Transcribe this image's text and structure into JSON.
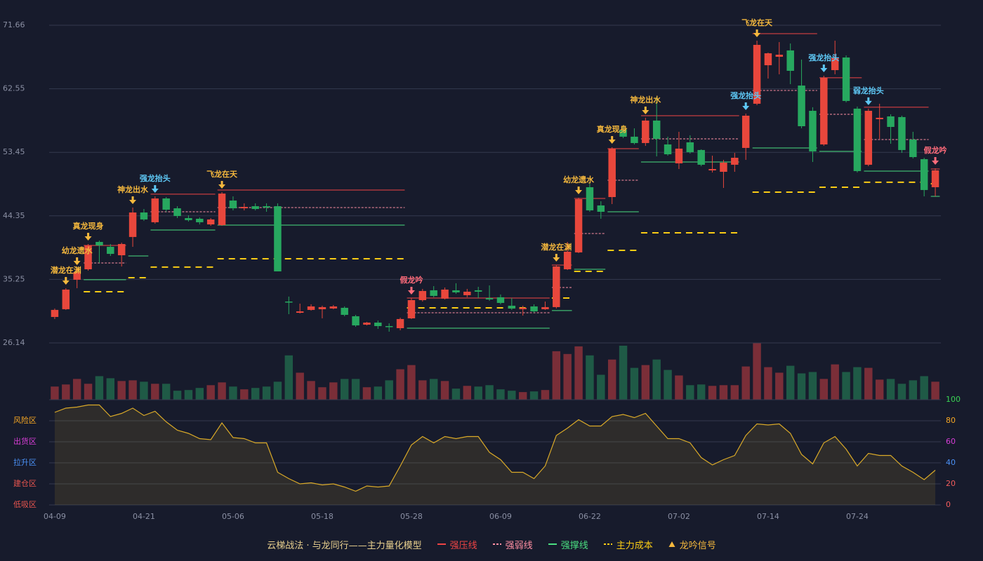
{
  "chart_data": [
    {
      "type": "candlestick",
      "categories": [
        "04-09",
        null,
        null,
        null,
        null,
        null,
        null,
        null,
        "04-21",
        null,
        null,
        null,
        null,
        null,
        null,
        null,
        "05-06",
        null,
        null,
        null,
        null,
        null,
        null,
        null,
        "05-18",
        null,
        null,
        null,
        null,
        null,
        null,
        null,
        "05-28",
        null,
        null,
        null,
        null,
        null,
        null,
        null,
        "06-09",
        null,
        null,
        null,
        null,
        null,
        null,
        null,
        "06-22",
        null,
        null,
        null,
        null,
        null,
        null,
        null,
        "07-02",
        null,
        null,
        null,
        null,
        null,
        null,
        null,
        "07-14",
        null,
        null,
        null,
        null,
        null,
        null,
        null,
        "07-24",
        null,
        null,
        null,
        null,
        null,
        null,
        null
      ],
      "open": [
        29.86,
        30.97,
        35.19,
        36.69,
        40.61,
        39.91,
        38.7,
        41.32,
        44.83,
        43.43,
        46.84,
        45.43,
        44.03,
        43.93,
        43.12,
        43.02,
        46.54,
        45.43,
        45.73,
        45.73,
        45.73,
        32.07,
        30.46,
        30.87,
        30.97,
        31.07,
        31.17,
        29.96,
        28.75,
        29.05,
        28.55,
        28.25,
        29.66,
        32.27,
        33.68,
        32.48,
        33.68,
        32.98,
        33.68,
        32.57,
        32.68,
        31.47,
        30.97,
        31.37,
        30.97,
        31.27,
        36.69,
        39.11,
        48.45,
        45.84,
        47.04,
        56.69,
        55.69,
        54.78,
        58.0,
        54.58,
        51.87,
        54.88,
        53.78,
        50.86,
        50.66,
        51.67,
        54.08,
        60.41,
        65.93,
        67.14,
        68.05,
        63.02,
        59.4,
        54.58,
        65.23,
        67.04,
        59.71,
        51.67,
        58.2,
        58.6,
        58.5,
        55.28,
        52.47,
        48.45
      ],
      "high": [
        31.07,
        33.98,
        36.79,
        40.31,
        40.81,
        40.31,
        40.51,
        45.54,
        45.33,
        47.14,
        47.04,
        45.73,
        44.43,
        44.13,
        44.03,
        47.75,
        47.14,
        46.14,
        46.14,
        46.14,
        46.14,
        32.78,
        31.77,
        31.67,
        31.47,
        31.57,
        31.37,
        30.16,
        29.15,
        29.35,
        28.95,
        29.76,
        32.57,
        33.88,
        34.28,
        34.08,
        34.69,
        33.88,
        34.18,
        34.38,
        33.08,
        32.57,
        31.47,
        31.67,
        32.07,
        37.3,
        40.61,
        46.94,
        48.95,
        46.44,
        54.18,
        57.19,
        56.89,
        58.4,
        61.41,
        55.69,
        56.39,
        55.89,
        53.88,
        52.97,
        52.37,
        53.37,
        59.0,
        69.45,
        67.74,
        69.25,
        69.05,
        66.74,
        59.91,
        64.43,
        69.45,
        67.34,
        60.01,
        59.71,
        60.41,
        58.9,
        58.7,
        56.39,
        52.67,
        51.16
      ],
      "low": [
        29.56,
        30.87,
        33.98,
        36.49,
        37.6,
        38.6,
        37.09,
        39.91,
        43.63,
        43.22,
        44.93,
        44.03,
        43.53,
        43.12,
        42.92,
        42.92,
        45.13,
        45.13,
        45.13,
        44.93,
        36.39,
        30.26,
        30.36,
        30.77,
        29.66,
        30.97,
        29.96,
        28.45,
        28.65,
        28.15,
        27.75,
        27.95,
        29.56,
        32.07,
        32.68,
        32.37,
        33.18,
        32.68,
        32.57,
        32.17,
        31.67,
        30.87,
        30.06,
        30.46,
        30.87,
        31.07,
        36.59,
        39.01,
        44.93,
        43.93,
        46.04,
        55.48,
        54.58,
        54.38,
        52.87,
        52.97,
        51.06,
        53.27,
        51.46,
        50.56,
        48.35,
        50.66,
        52.37,
        60.21,
        64.02,
        64.63,
        63.22,
        56.89,
        52.07,
        54.38,
        64.63,
        60.61,
        50.56,
        51.46,
        55.38,
        54.68,
        53.37,
        52.57,
        47.14,
        47.14
      ],
      "close": [
        30.87,
        33.78,
        36.29,
        40.11,
        40.11,
        38.9,
        40.31,
        44.83,
        43.83,
        46.84,
        45.23,
        44.33,
        43.73,
        43.43,
        43.83,
        47.54,
        45.43,
        45.63,
        45.33,
        45.53,
        36.39,
        31.97,
        30.66,
        31.37,
        31.27,
        31.37,
        30.16,
        28.65,
        29.05,
        28.55,
        28.45,
        29.56,
        32.27,
        33.58,
        32.88,
        33.78,
        33.38,
        33.48,
        33.48,
        32.37,
        31.87,
        31.07,
        31.17,
        30.66,
        31.27,
        37.09,
        39.21,
        46.74,
        45.13,
        44.93,
        53.98,
        55.69,
        54.78,
        58.0,
        55.38,
        53.17,
        53.98,
        53.47,
        51.67,
        51.06,
        51.97,
        52.67,
        58.7,
        68.85,
        67.64,
        67.44,
        65.13,
        57.19,
        53.58,
        64.13,
        67.04,
        60.81,
        50.76,
        59.4,
        58.4,
        57.09,
        53.78,
        52.77,
        48.05,
        50.86
      ],
      "up_color": "#e8473c",
      "down_color": "#27a85f",
      "ylim": [
        26.14,
        71.66
      ],
      "yticks": [
        26.14,
        35.25,
        44.35,
        53.45,
        62.55,
        71.66
      ],
      "grid": true,
      "level_lines": [
        {
          "name": "强压线",
          "color": "#ef4444",
          "dashed": false,
          "segments": [
            {
              "from": 3,
              "to": 6,
              "value": 40.11
            },
            {
              "from": 9,
              "to": 14,
              "value": 47.45
            },
            {
              "from": 15,
              "to": 31,
              "value": 48.05
            },
            {
              "from": 32,
              "to": 44,
              "value": 32.57
            },
            {
              "from": 45,
              "to": 46,
              "value": 37.3
            },
            {
              "from": 47,
              "to": 49,
              "value": 46.84
            },
            {
              "from": 50,
              "to": 52,
              "value": 53.98
            },
            {
              "from": 53,
              "to": 61,
              "value": 58.7
            },
            {
              "from": 63,
              "to": 68,
              "value": 70.45
            },
            {
              "from": 69,
              "to": 72,
              "value": 64.13
            },
            {
              "from": 73,
              "to": 78,
              "value": 59.91
            },
            {
              "from": 79,
              "to": 79,
              "value": 51.06
            }
          ]
        },
        {
          "name": "强弱线",
          "color": "#ff8fa3",
          "dashed": true,
          "segments": [
            {
              "from": 3,
              "to": 6,
              "value": 37.6
            },
            {
              "from": 9,
              "to": 14,
              "value": 44.93
            },
            {
              "from": 15,
              "to": 31,
              "value": 45.54
            },
            {
              "from": 32,
              "to": 44,
              "value": 30.46
            },
            {
              "from": 45,
              "to": 46,
              "value": 34.08
            },
            {
              "from": 47,
              "to": 49,
              "value": 41.82
            },
            {
              "from": 50,
              "to": 52,
              "value": 49.45
            },
            {
              "from": 53,
              "to": 61,
              "value": 55.38
            },
            {
              "from": 63,
              "to": 68,
              "value": 62.32
            },
            {
              "from": 69,
              "to": 72,
              "value": 58.9
            },
            {
              "from": 73,
              "to": 78,
              "value": 55.28
            }
          ]
        },
        {
          "name": "强撑线",
          "color": "#4ade80",
          "dashed": false,
          "segments": [
            {
              "from": 3,
              "to": 6,
              "value": 35.19
            },
            {
              "from": 7,
              "to": 8,
              "value": 38.6
            },
            {
              "from": 9,
              "to": 14,
              "value": 42.32
            },
            {
              "from": 15,
              "to": 31,
              "value": 43.02
            },
            {
              "from": 32,
              "to": 44,
              "value": 28.25
            },
            {
              "from": 45,
              "to": 46,
              "value": 30.77
            },
            {
              "from": 47,
              "to": 49,
              "value": 36.69
            },
            {
              "from": 50,
              "to": 52,
              "value": 44.93
            },
            {
              "from": 53,
              "to": 61,
              "value": 52.07
            },
            {
              "from": 63,
              "to": 68,
              "value": 54.08
            },
            {
              "from": 69,
              "to": 72,
              "value": 53.58
            },
            {
              "from": 73,
              "to": 78,
              "value": 50.76
            },
            {
              "from": 79,
              "to": 79,
              "value": 47.14
            }
          ]
        },
        {
          "name": "主力成本",
          "color": "#facc15",
          "dashed": true,
          "segments": [
            {
              "from": 3,
              "to": 6,
              "value": 33.48
            },
            {
              "from": 7,
              "to": 8,
              "value": 35.49
            },
            {
              "from": 9,
              "to": 14,
              "value": 37.0
            },
            {
              "from": 15,
              "to": 31,
              "value": 38.2
            },
            {
              "from": 32,
              "to": 44,
              "value": 31.17
            },
            {
              "from": 45,
              "to": 46,
              "value": 32.57
            },
            {
              "from": 47,
              "to": 49,
              "value": 36.39
            },
            {
              "from": 50,
              "to": 52,
              "value": 39.41
            },
            {
              "from": 53,
              "to": 61,
              "value": 41.92
            },
            {
              "from": 63,
              "to": 68,
              "value": 47.75
            },
            {
              "from": 69,
              "to": 72,
              "value": 48.45
            },
            {
              "from": 73,
              "to": 78,
              "value": 49.16
            },
            {
              "from": 79,
              "to": 79,
              "value": 48.95
            }
          ]
        }
      ],
      "signals": [
        {
          "x": 1,
          "label": "潜龙在渊",
          "color": "#f5b83d"
        },
        {
          "x": 2,
          "label": "幼龙遗水",
          "color": "#f5b83d"
        },
        {
          "x": 3,
          "label": "真龙现身",
          "color": "#f5b83d"
        },
        {
          "x": 7,
          "label": "神龙出水",
          "color": "#f5b83d"
        },
        {
          "x": 9,
          "label": "强龙抬头",
          "color": "#5ec8f5"
        },
        {
          "x": 15,
          "label": "飞龙在天",
          "color": "#f5b83d"
        },
        {
          "x": 32,
          "label": "假龙吟",
          "color": "#ff6b7a"
        },
        {
          "x": 45,
          "label": "潜龙在渊",
          "color": "#f5b83d"
        },
        {
          "x": 47,
          "label": "幼龙遗水",
          "color": "#f5b83d"
        },
        {
          "x": 50,
          "label": "真龙现身",
          "color": "#f5b83d"
        },
        {
          "x": 53,
          "label": "神龙出水",
          "color": "#f5b83d"
        },
        {
          "x": 62,
          "label": "强龙抬头",
          "color": "#5ec8f5"
        },
        {
          "x": 63,
          "label": "飞龙在天",
          "color": "#f5b83d"
        },
        {
          "x": 69,
          "label": "强龙抬头",
          "color": "#5ec8f5"
        },
        {
          "x": 73,
          "label": "弱龙抬头",
          "color": "#5ec8f5"
        },
        {
          "x": 79,
          "label": "假龙吟",
          "color": "#ff6b7a"
        }
      ],
      "legend_title": "云梯战法 · 与龙同行——主力量化模型",
      "signal_legend": "龙吟信号",
      "signal_legend_color": "#f5b83d"
    },
    {
      "type": "bar",
      "values": [
        19,
        22,
        30,
        23,
        34,
        31,
        27,
        28,
        26,
        23,
        23,
        13,
        14,
        17,
        21,
        25,
        19,
        15,
        17,
        19,
        26,
        64,
        39,
        27,
        18,
        25,
        30,
        30,
        18,
        19,
        28,
        44,
        50,
        28,
        30,
        27,
        16,
        20,
        19,
        21,
        15,
        13,
        11,
        12,
        14,
        70,
        66,
        77,
        64,
        36,
        58,
        78,
        46,
        50,
        58,
        43,
        35,
        21,
        22,
        20,
        21,
        21,
        48,
        82,
        47,
        39,
        49,
        38,
        40,
        30,
        51,
        40,
        47,
        46,
        29,
        30,
        23,
        28,
        34,
        26
      ],
      "up_color": "#7a2e38",
      "down_color": "#1f5a46",
      "ylim": [
        0,
        82
      ]
    },
    {
      "type": "area",
      "values": [
        88,
        92,
        93,
        95,
        95,
        84,
        87,
        92,
        85,
        89,
        79,
        71,
        68,
        63,
        62,
        78,
        64,
        63,
        59,
        59,
        31,
        25,
        20,
        21,
        19,
        20,
        17,
        13,
        18,
        17,
        18,
        37,
        57,
        65,
        59,
        65,
        63,
        65,
        65,
        50,
        43,
        31,
        31,
        25,
        37,
        66,
        73,
        81,
        75,
        75,
        84,
        86,
        83,
        87,
        75,
        63,
        63,
        59,
        45,
        38,
        43,
        47,
        66,
        77,
        76,
        77,
        68,
        48,
        39,
        59,
        65,
        53,
        37,
        49,
        47,
        47,
        37,
        31,
        24,
        33
      ],
      "color": "#d9a928",
      "ylim": [
        0,
        100
      ],
      "yticks": [
        0,
        20,
        40,
        60,
        80,
        100
      ],
      "ytick_colors": [
        "#f25c5c",
        "#f25c5c",
        "#4a90f5",
        "#d63dd6",
        "#f5a623",
        "#39d353"
      ],
      "zones": [
        {
          "label": "风险区",
          "value": 80,
          "color": "#f5a623"
        },
        {
          "label": "出货区",
          "value": 60,
          "color": "#d63dd6"
        },
        {
          "label": "拉升区",
          "value": 40,
          "color": "#4a90f5"
        },
        {
          "label": "建仓区",
          "value": 20,
          "color": "#e8554e"
        },
        {
          "label": "低吸区",
          "value": 0,
          "color": "#e8554e"
        }
      ]
    }
  ]
}
